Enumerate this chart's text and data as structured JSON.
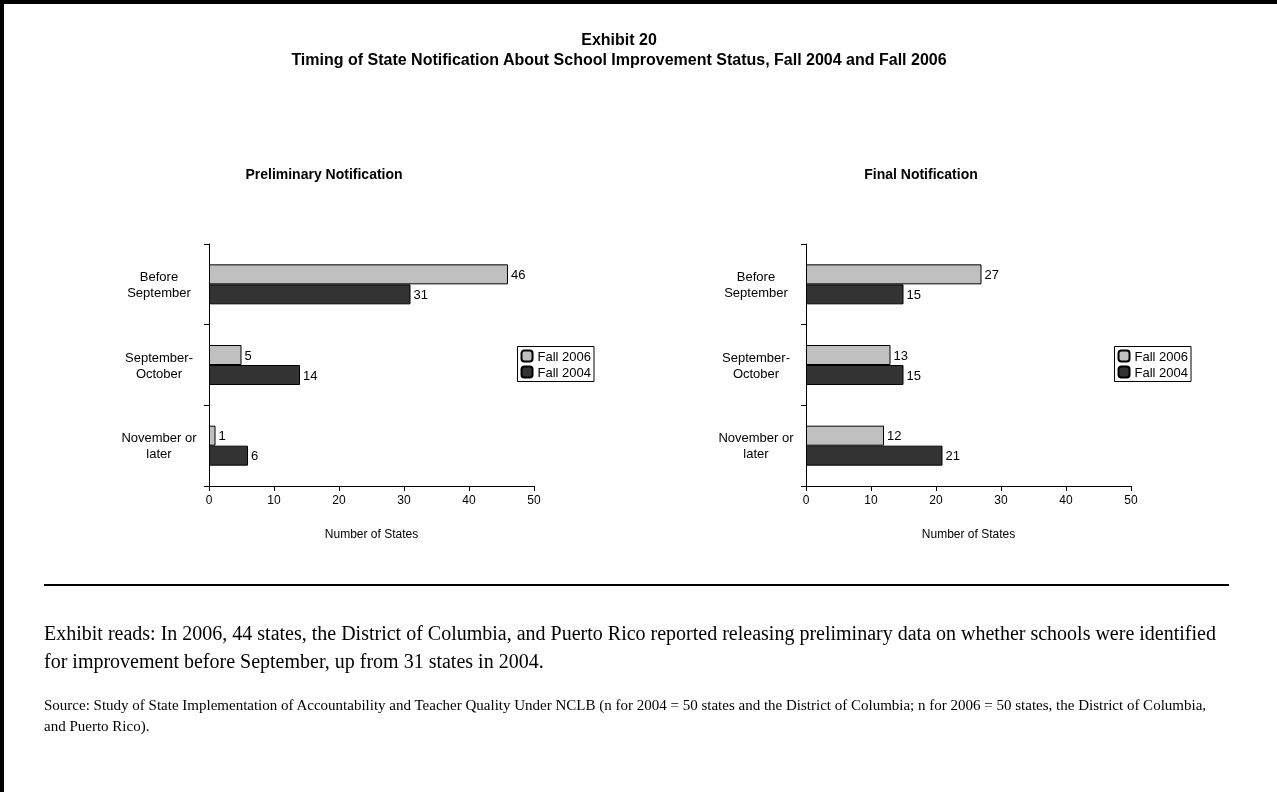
{
  "chart_data": [
    {
      "type": "bar",
      "orientation": "horizontal",
      "title": "Preliminary Notification",
      "xlabel": "Number of States",
      "categories": [
        "Before\nSeptember",
        "September-\nOctober",
        "November or\nlater"
      ],
      "series": [
        {
          "name": "Fall 2006",
          "color": "#c0c0c0",
          "values": [
            46,
            5,
            1
          ]
        },
        {
          "name": "Fall 2004",
          "color": "#333333",
          "values": [
            31,
            14,
            6
          ]
        }
      ],
      "xlim": [
        0,
        50
      ],
      "xticks": [
        0,
        10,
        20,
        30,
        40,
        50
      ],
      "grid": false,
      "legend": "right",
      "data_labels": true,
      "annotations": [
        "Exhibit 20",
        "Timing of State Notification About School Improvement Status, Fall 2004 and Fall 2006",
        "Exhibit reads:  In 2006, 44 states, the District of Columbia, and Puerto Rico reported releasing preliminary data on whether schools were identified for improvement before September, up from 31 states in 2004.",
        "Source:  Study of State Implementation of Accountability and Teacher Quality Under NCLB (n for 2004 = 50 states and the District of Columbia; n for 2006 = 50 states, the District of Columbia, and Puerto Rico)."
      ]
    },
    {
      "type": "bar",
      "orientation": "horizontal",
      "title": "Final Notification",
      "xlabel": "Number of States",
      "categories": [
        "Before\nSeptember",
        "September-\nOctober",
        "November or\nlater"
      ],
      "series": [
        {
          "name": "Fall 2006",
          "color": "#c0c0c0",
          "values": [
            27,
            13,
            12
          ]
        },
        {
          "name": "Fall 2004",
          "color": "#333333",
          "values": [
            15,
            15,
            21
          ]
        }
      ],
      "xlim": [
        0,
        50
      ],
      "xticks": [
        0,
        10,
        20,
        30,
        40,
        50
      ],
      "grid": false,
      "legend": "right",
      "data_labels": true
    }
  ]
}
